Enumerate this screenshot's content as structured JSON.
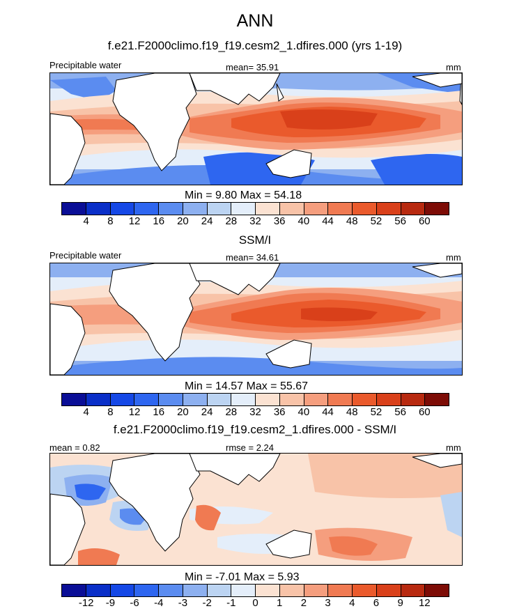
{
  "title": "ANN",
  "panels": [
    {
      "subtitle": "f.e21.F2000climo.f19_f19.cesm2_1.dfires.000 (yrs 1-19)",
      "left_label": "Precipitable water",
      "center_label": "mean=  35.91",
      "units": "mm",
      "minmax": "Min =   9.80 Max =  54.18"
    },
    {
      "subtitle": "SSM/I",
      "left_label": "Precipitable water",
      "center_label": "mean=  34.61",
      "units": "mm",
      "minmax": "Min =  14.57 Max =  55.67"
    },
    {
      "subtitle": "f.e21.F2000climo.f19_f19.cesm2_1.dfires.000 - SSM/I",
      "left_label": "mean =   0.82",
      "center_label": "rmse =   2.24",
      "units": "mm",
      "minmax": "Min =  -7.01 Max =   5.93"
    }
  ],
  "colorbar_abs": {
    "colors": [
      "#0a0e96",
      "#0a2fc8",
      "#1548e6",
      "#2e66f0",
      "#5b8cf0",
      "#8db0f0",
      "#bcd4f2",
      "#e4eefa",
      "#fbe2d2",
      "#f8c3a8",
      "#f59e7e",
      "#f07a52",
      "#ea5a2c",
      "#d9401a",
      "#b82a10",
      "#7d0c06"
    ],
    "tick_labels": [
      "4",
      "8",
      "12",
      "16",
      "20",
      "24",
      "28",
      "32",
      "36",
      "40",
      "44",
      "48",
      "52",
      "56",
      "60"
    ]
  },
  "colorbar_diff": {
    "colors": [
      "#0a0e96",
      "#0a2fc8",
      "#1548e6",
      "#2e66f0",
      "#5b8cf0",
      "#8db0f0",
      "#bcd4f2",
      "#e4eefa",
      "#fbe2d2",
      "#f8c3a8",
      "#f59e7e",
      "#f07a52",
      "#ea5a2c",
      "#d9401a",
      "#b82a10",
      "#7d0c06"
    ],
    "tick_labels": [
      "-12",
      "-9",
      "-6",
      "-4",
      "-3",
      "-2",
      "-1",
      "0",
      "1",
      "2",
      "3",
      "4",
      "6",
      "9",
      "12"
    ]
  }
}
